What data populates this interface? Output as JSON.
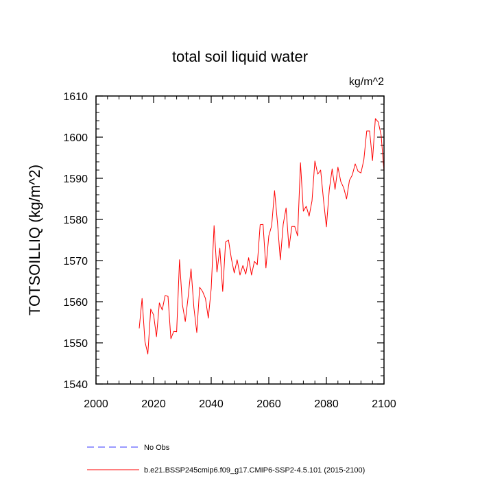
{
  "chart_data": {
    "type": "line",
    "title": "total soil liquid water",
    "units_label": "kg/m^2",
    "ylabel": "TOTSOILLIQ  (kg/m^2)",
    "xlabel": "",
    "xlim": [
      2000,
      2100
    ],
    "ylim": [
      1540,
      1610
    ],
    "x_major_ticks": [
      2000,
      2020,
      2040,
      2060,
      2080,
      2100
    ],
    "y_major_ticks": [
      1540,
      1550,
      1560,
      1570,
      1580,
      1590,
      1600,
      1610
    ],
    "x_minor_step": 4,
    "y_minor_step": 2,
    "series": [
      {
        "name": "b.e21.BSSP245cmip6.f09_g17.CMIP6-SSP2-4.5.101 (2015-2100)",
        "color": "#ff0000",
        "style": "solid",
        "x": [
          2015,
          2016,
          2017,
          2018,
          2019,
          2020,
          2021,
          2022,
          2023,
          2024,
          2025,
          2026,
          2027,
          2028,
          2029,
          2030,
          2031,
          2032,
          2033,
          2034,
          2035,
          2036,
          2037,
          2038,
          2039,
          2040,
          2041,
          2042,
          2043,
          2044,
          2045,
          2046,
          2047,
          2048,
          2049,
          2050,
          2051,
          2052,
          2053,
          2054,
          2055,
          2056,
          2057,
          2058,
          2059,
          2060,
          2061,
          2062,
          2063,
          2064,
          2065,
          2066,
          2067,
          2068,
          2069,
          2070,
          2071,
          2072,
          2073,
          2074,
          2075,
          2076,
          2077,
          2078,
          2079,
          2080,
          2081,
          2082,
          2083,
          2084,
          2085,
          2086,
          2087,
          2088,
          2089,
          2090,
          2091,
          2092,
          2093,
          2094,
          2095,
          2096,
          2097,
          2098,
          2099,
          2100
        ],
        "values": [
          1553.5,
          1560.8,
          1550.3,
          1547.3,
          1558.2,
          1556.8,
          1551.5,
          1559.7,
          1558.0,
          1561.5,
          1561.3,
          1551.0,
          1552.8,
          1552.7,
          1570.2,
          1559.3,
          1555.2,
          1561.2,
          1568.0,
          1558.5,
          1552.5,
          1563.5,
          1562.5,
          1560.8,
          1556.0,
          1563.2,
          1578.5,
          1567.2,
          1573.0,
          1562.5,
          1574.5,
          1575.0,
          1570.5,
          1567.0,
          1570.2,
          1566.5,
          1568.8,
          1566.7,
          1570.7,
          1566.5,
          1569.8,
          1569.0,
          1578.7,
          1578.8,
          1568.2,
          1576.0,
          1578.5,
          1587.0,
          1579.3,
          1570.2,
          1578.8,
          1582.8,
          1573.0,
          1578.3,
          1578.3,
          1576.0,
          1593.8,
          1582.0,
          1583.2,
          1580.8,
          1584.5,
          1594.2,
          1591.0,
          1592.0,
          1584.7,
          1578.2,
          1587.2,
          1592.3,
          1587.3,
          1592.7,
          1589.2,
          1587.7,
          1585.0,
          1589.5,
          1590.8,
          1593.5,
          1591.7,
          1591.3,
          1594.5,
          1601.5,
          1601.5,
          1594.3,
          1604.5,
          1603.7,
          1600.5,
          1591.7
        ]
      }
    ],
    "legend": {
      "position": "bottom",
      "entries": [
        {
          "label": "No Obs",
          "color": "#3333ff",
          "style": "dashed"
        },
        {
          "label": "b.e21.BSSP245cmip6.f09_g17.CMIP6-SSP2-4.5.101 (2015-2100)",
          "color": "#ff0000",
          "style": "solid"
        }
      ]
    }
  }
}
